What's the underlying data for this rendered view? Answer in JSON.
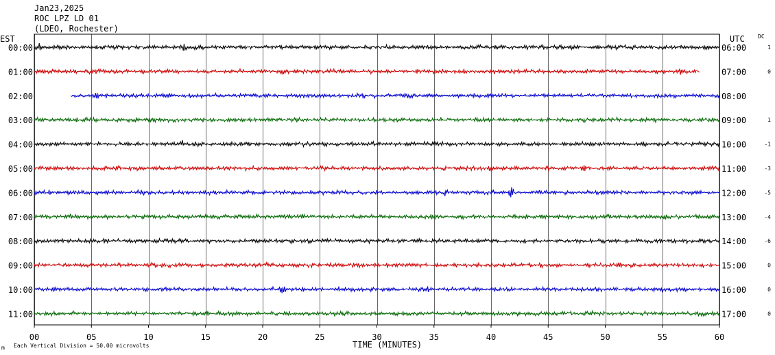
{
  "header": {
    "date": "Jan23,2025",
    "station": "ROC LPZ LD 01",
    "network": "(LDEO, Rochester)"
  },
  "labels": {
    "left_zone": "EST",
    "right_zone": "UTC",
    "dc_header": "DC",
    "xlabel": "TIME (MINUTES)",
    "scale_note": "Each Vertical Division =   50.00 microvolts",
    "corner_mark": "m"
  },
  "colors": {
    "black": "#000000",
    "red": "#cc0000",
    "blue": "#0000cc",
    "green": "#006600",
    "grid": "#000000"
  },
  "chart_data": {
    "type": "line",
    "x_range": [
      0,
      60
    ],
    "x_ticks": [
      "00",
      "05",
      "10",
      "15",
      "20",
      "25",
      "30",
      "35",
      "40",
      "45",
      "50",
      "55",
      "60"
    ],
    "grid": true,
    "traces": [
      {
        "left_label": "00:00",
        "right_label": "06:00",
        "dc": "1",
        "color": "black",
        "start_min": 0,
        "end_min": 60,
        "amp": 3,
        "events": [
          {
            "t": 0.5,
            "a": 4
          },
          {
            "t": 1.5,
            "a": 3
          },
          {
            "t": 13.1,
            "a": 4
          }
        ]
      },
      {
        "left_label": "01:00",
        "right_label": "07:00",
        "dc": "0",
        "color": "red",
        "start_min": 0,
        "end_min": 58.0,
        "amp": 3,
        "events": [
          {
            "t": 21.7,
            "a": 3
          },
          {
            "t": 56.5,
            "a": 3
          }
        ]
      },
      {
        "left_label": "02:00",
        "right_label": "08:00",
        "dc": "",
        "color": "blue",
        "start_min": 3.2,
        "end_min": 60,
        "amp": 3,
        "events": [
          {
            "t": 5.5,
            "a": 4
          },
          {
            "t": 28.8,
            "a": 3
          }
        ]
      },
      {
        "left_label": "03:00",
        "right_label": "09:00",
        "dc": "1",
        "color": "green",
        "start_min": 0,
        "end_min": 60,
        "amp": 3,
        "events": []
      },
      {
        "left_label": "04:00",
        "right_label": "10:00",
        "dc": "-1",
        "color": "black",
        "start_min": 0,
        "end_min": 60,
        "amp": 3,
        "events": [
          {
            "t": 13.0,
            "a": 4
          }
        ]
      },
      {
        "left_label": "05:00",
        "right_label": "11:00",
        "dc": "-3",
        "color": "red",
        "start_min": 0,
        "end_min": 60,
        "amp": 3,
        "events": [
          {
            "t": 48.2,
            "a": 3
          }
        ]
      },
      {
        "left_label": "06:00",
        "right_label": "12:00",
        "dc": "-5",
        "color": "blue",
        "start_min": 0,
        "end_min": 60,
        "amp": 3,
        "events": [
          {
            "t": 41.8,
            "a": 8
          },
          {
            "t": 36.0,
            "a": 3
          }
        ]
      },
      {
        "left_label": "07:00",
        "right_label": "13:00",
        "dc": "-4",
        "color": "green",
        "start_min": 0,
        "end_min": 60,
        "amp": 3,
        "events": [
          {
            "t": 3.5,
            "a": 3
          },
          {
            "t": 55.2,
            "a": 3
          }
        ]
      },
      {
        "left_label": "08:00",
        "right_label": "14:00",
        "dc": "-6",
        "color": "black",
        "start_min": 0,
        "end_min": 60,
        "amp": 3,
        "events": [
          {
            "t": 6.2,
            "a": 3
          }
        ]
      },
      {
        "left_label": "09:00",
        "right_label": "15:00",
        "dc": "0",
        "color": "red",
        "start_min": 0,
        "end_min": 60,
        "amp": 3,
        "events": [
          {
            "t": 44.3,
            "a": 3
          }
        ]
      },
      {
        "left_label": "10:00",
        "right_label": "16:00",
        "dc": "0",
        "color": "blue",
        "start_min": 0,
        "end_min": 60,
        "amp": 3,
        "events": [
          {
            "t": 21.7,
            "a": 4
          },
          {
            "t": 34.4,
            "a": 3
          }
        ]
      },
      {
        "left_label": "11:00",
        "right_label": "17:00",
        "dc": "0",
        "color": "green",
        "start_min": 0,
        "end_min": 60,
        "amp": 3,
        "events": [
          {
            "t": 58.6,
            "a": 3
          }
        ]
      }
    ]
  }
}
